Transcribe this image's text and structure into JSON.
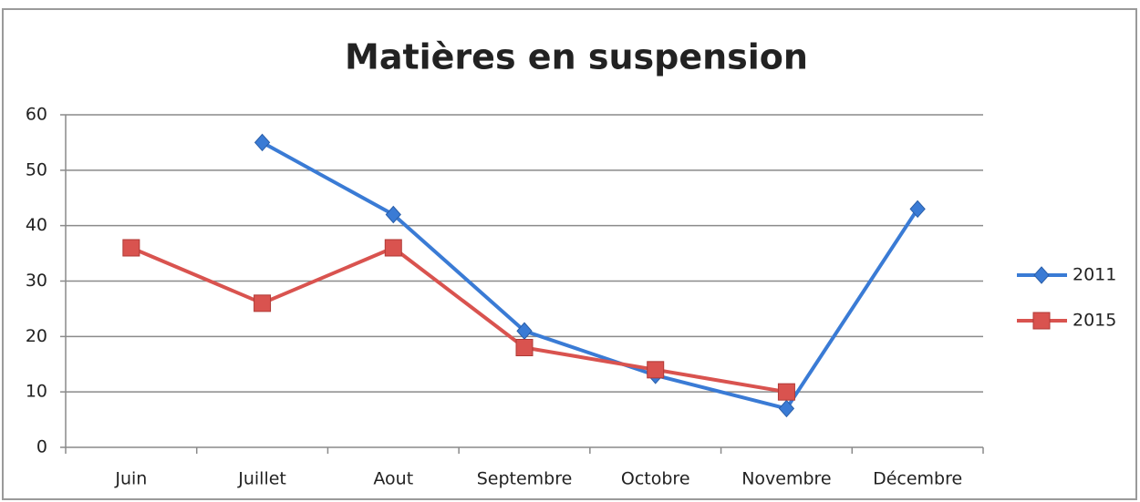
{
  "chart_data": {
    "type": "line",
    "title": "Matières en suspension",
    "categories": [
      "Juin",
      "Juillet",
      "Aout",
      "Septembre",
      "Octobre",
      "Novembre",
      "Décembre"
    ],
    "series": [
      {
        "name": "2011",
        "color": "#3a7bd5",
        "marker": "diamond",
        "values": [
          null,
          55,
          42,
          21,
          13,
          7,
          43
        ]
      },
      {
        "name": "2015",
        "color": "#d9534f",
        "marker": "square",
        "values": [
          36,
          26,
          36,
          18,
          14,
          10,
          null
        ]
      }
    ],
    "ylim": [
      0,
      60
    ],
    "yticks": [
      0,
      10,
      20,
      30,
      40,
      50,
      60
    ],
    "grid": true,
    "legend": "right"
  }
}
